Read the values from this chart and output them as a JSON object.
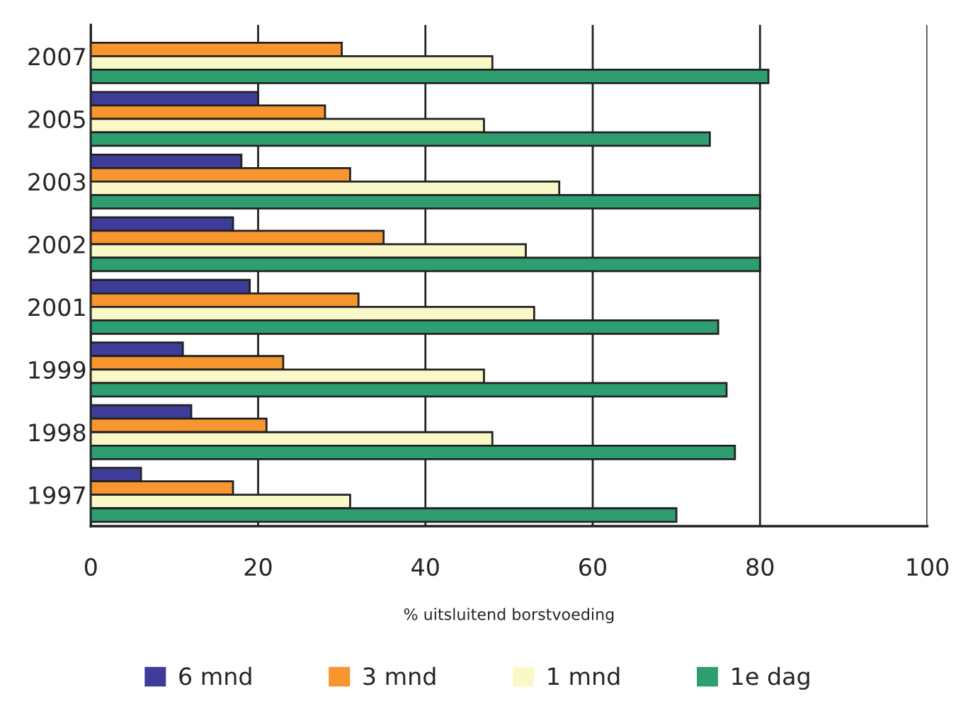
{
  "chart_data": {
    "type": "bar",
    "orientation": "horizontal",
    "xlabel": "% uitsluitend borstvoeding",
    "categories": [
      "2007",
      "2005",
      "2003",
      "2002",
      "2001",
      "1999",
      "1998",
      "1997"
    ],
    "series": [
      {
        "name": "6 mnd",
        "color": "#3d3d99",
        "values": [
          null,
          20,
          18,
          17,
          19,
          11,
          12,
          6
        ]
      },
      {
        "name": "3 mnd",
        "color": "#f7962e",
        "values": [
          30,
          28,
          31,
          35,
          32,
          23,
          21,
          17
        ]
      },
      {
        "name": "1 mnd",
        "color": "#fbf8c8",
        "values": [
          48,
          47,
          56,
          52,
          53,
          47,
          48,
          31
        ]
      },
      {
        "name": "1e dag",
        "color": "#2e9e70",
        "values": [
          81,
          74,
          80,
          80,
          75,
          76,
          77,
          70
        ]
      }
    ],
    "xlim": [
      0,
      100
    ],
    "xticks": [
      0,
      20,
      40,
      60,
      80,
      100
    ],
    "grid": "x",
    "legend": "bottom"
  }
}
